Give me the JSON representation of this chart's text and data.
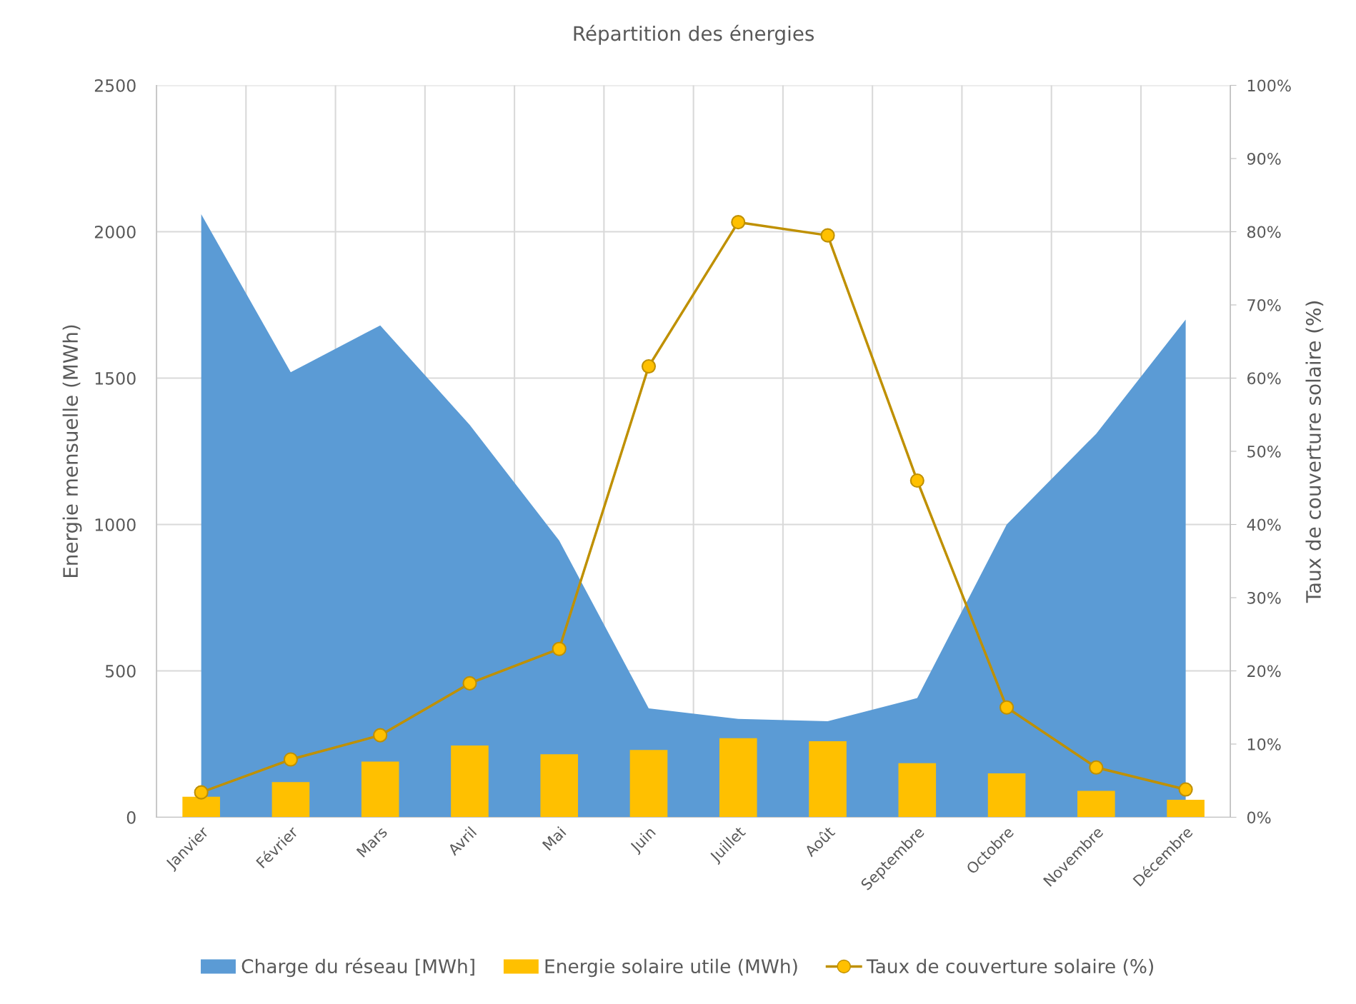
{
  "chart_data": {
    "type": "area",
    "title": "Répartition des énergies",
    "ylabel": "Energie mensuelle (MWh)",
    "y2label": "Taux de couverture solaire (%)",
    "categories": [
      "Janvier",
      "Février",
      "Mars",
      "Avril",
      "Mai",
      "Juin",
      "Juillet",
      "Août",
      "Septembre",
      "Octobre",
      "Novembre",
      "Décembre"
    ],
    "series": [
      {
        "name": "Charge du réseau [MWh]",
        "color": "#5b9bd5",
        "values": [
          2060,
          1520,
          1680,
          1340,
          945,
          372,
          336,
          328,
          407,
          1000,
          1310,
          1700
        ]
      },
      {
        "name": "Energie solaire utile (MWh)",
        "type": "bar",
        "color": "#ffc000",
        "values": [
          70,
          120,
          190,
          245,
          215,
          230,
          270,
          260,
          185,
          150,
          90,
          60
        ]
      },
      {
        "name": "Taux de couverture solaire (%)",
        "type": "line",
        "axis": "y2",
        "color": "#bf9000",
        "marker": "circle",
        "values": [
          3.4,
          7.9,
          11.2,
          18.3,
          23.0,
          61.6,
          81.3,
          79.5,
          46.0,
          15.0,
          6.8,
          3.8
        ]
      }
    ],
    "ylim": [
      0,
      2500
    ],
    "yticks": [
      0,
      500,
      1000,
      1500,
      2000,
      2500
    ],
    "y2lim": [
      0,
      100
    ],
    "y2ticks": [
      {
        "value": 0,
        "label": "0%"
      },
      {
        "value": 10,
        "label": "10%"
      },
      {
        "value": 20,
        "label": "20%"
      },
      {
        "value": 30,
        "label": "30%"
      },
      {
        "value": 40,
        "label": "40%"
      },
      {
        "value": 50,
        "label": "50%"
      },
      {
        "value": 60,
        "label": "60%"
      },
      {
        "value": 70,
        "label": "70%"
      },
      {
        "value": 80,
        "label": "80%"
      },
      {
        "value": 90,
        "label": "90%"
      },
      {
        "value": 100,
        "label": "100%"
      }
    ],
    "grid": true,
    "legend": "bottom"
  }
}
